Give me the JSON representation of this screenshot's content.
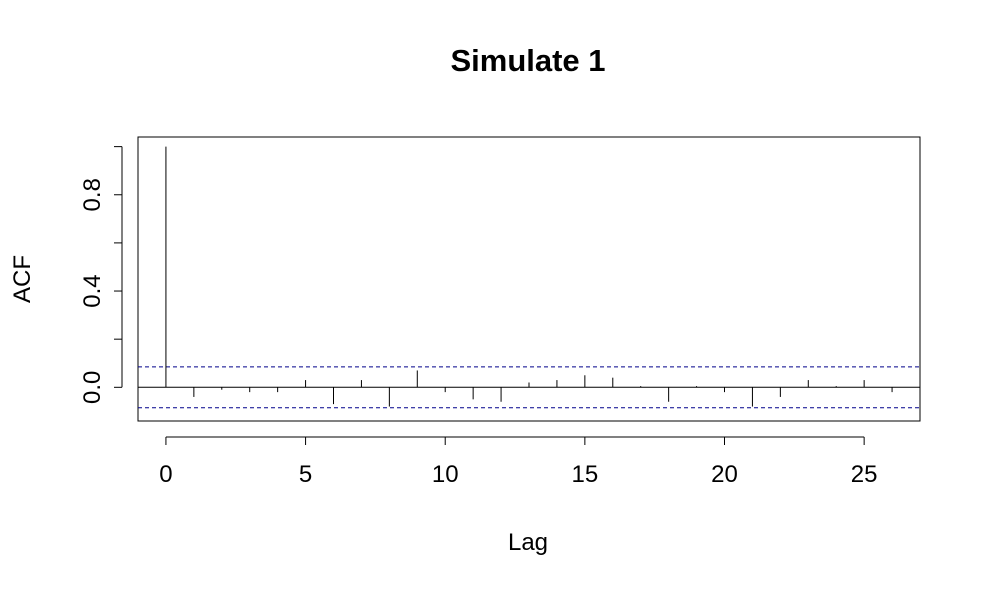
{
  "chart_data": {
    "type": "bar",
    "title": "Simulate 1",
    "xlabel": "Lag",
    "ylabel": "ACF",
    "x": [
      0,
      1,
      2,
      3,
      4,
      5,
      6,
      7,
      8,
      9,
      10,
      11,
      12,
      13,
      14,
      15,
      16,
      17,
      18,
      19,
      20,
      21,
      22,
      23,
      24,
      25,
      26
    ],
    "values": [
      1.0,
      -0.04,
      -0.01,
      -0.02,
      -0.02,
      0.03,
      -0.07,
      0.03,
      -0.08,
      0.07,
      -0.02,
      -0.05,
      -0.06,
      0.02,
      0.03,
      0.05,
      0.04,
      0.005,
      -0.06,
      0.005,
      -0.02,
      -0.08,
      -0.04,
      0.03,
      0.005,
      0.03,
      -0.02
    ],
    "confidence_bound": 0.085,
    "xlim": [
      -1,
      27
    ],
    "ylim": [
      -0.14,
      1.04
    ],
    "xticks": [
      0,
      5,
      10,
      15,
      20,
      25
    ],
    "xtick_labels": [
      "0",
      "5",
      "10",
      "15",
      "20",
      "25"
    ],
    "yticks": [
      0.0,
      0.2,
      0.4,
      0.6,
      0.8,
      1.0
    ],
    "ytick_labels": [
      {
        "value": 0.0,
        "label": "0.0"
      },
      {
        "value": 0.4,
        "label": "0.4"
      },
      {
        "value": 0.8,
        "label": "0.8"
      }
    ],
    "zero_line": true,
    "grid": false,
    "colors": {
      "bars": "#000000",
      "confidence_lines": "#00008b",
      "axes": "#000000"
    }
  }
}
